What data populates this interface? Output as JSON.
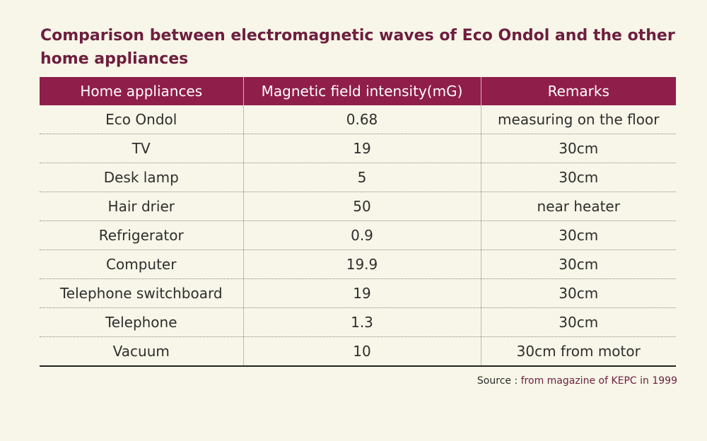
{
  "title": "Comparison between electromagnetic waves of Eco Ondol and the other home appliances",
  "table": {
    "headers": [
      "Home appliances",
      "Magnetic field intensity(mG)",
      "Remarks"
    ],
    "rows": [
      [
        "Eco Ondol",
        "0.68",
        "measuring on the floor"
      ],
      [
        "TV",
        "19",
        "30cm"
      ],
      [
        "Desk lamp",
        "5",
        "30cm"
      ],
      [
        "Hair drier",
        "50",
        "near heater"
      ],
      [
        "Refrigerator",
        "0.9",
        "30cm"
      ],
      [
        "Computer",
        "19.9",
        "30cm"
      ],
      [
        "Telephone switchboard",
        "19",
        "30cm"
      ],
      [
        "Telephone",
        "1.3",
        "30cm"
      ],
      [
        "Vacuum",
        "10",
        "30cm from motor"
      ]
    ]
  },
  "source": {
    "lead": "Source : ",
    "text": "from magazine of KEPC in 1999"
  },
  "colors": {
    "accent": "#8f1e4a",
    "title": "#6e1e3e",
    "background": "#f7f6e8"
  }
}
